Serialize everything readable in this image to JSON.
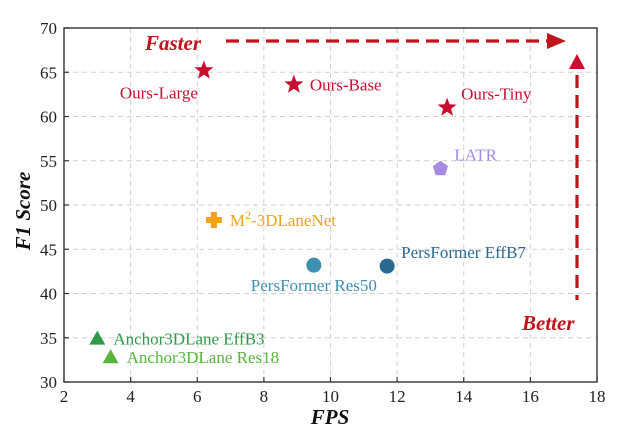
{
  "chart_data": {
    "type": "scatter",
    "xlabel": "FPS",
    "ylabel": "F1 Score",
    "xlim": [
      2,
      18
    ],
    "ylim": [
      30,
      70
    ],
    "xticks": [
      2,
      4,
      6,
      8,
      10,
      12,
      14,
      16,
      18
    ],
    "yticks": [
      30,
      35,
      40,
      45,
      50,
      55,
      60,
      65,
      70
    ],
    "grid": true,
    "points": [
      {
        "name": "Ours-Large",
        "x": 6.2,
        "y": 65.2,
        "marker": "star",
        "color": "#c8102e",
        "label_pos": "below-left"
      },
      {
        "name": "Ours-Base",
        "x": 8.9,
        "y": 63.6,
        "marker": "star",
        "color": "#c8102e",
        "label_pos": "right"
      },
      {
        "name": "Ours-Tiny",
        "x": 13.5,
        "y": 61.0,
        "marker": "star",
        "color": "#c8102e",
        "label_pos": "above-right"
      },
      {
        "name": "LATR",
        "x": 13.3,
        "y": 54.1,
        "marker": "pentagon",
        "color": "#a58be3",
        "label_pos": "above-right"
      },
      {
        "name_prefix": "M",
        "name_sup": "2",
        "name_suffix": "-3DLaneNet",
        "x": 6.5,
        "y": 48.3,
        "marker": "plus",
        "color": "#f2a31b",
        "label_pos": "right"
      },
      {
        "name": "PersFormer Res50",
        "x": 9.5,
        "y": 43.2,
        "marker": "circle",
        "color": "#3d8fb3",
        "label_pos": "below"
      },
      {
        "name": "PersFormer EffB7",
        "x": 11.7,
        "y": 43.1,
        "marker": "circle",
        "color": "#2a6a91",
        "label_pos": "above-right"
      },
      {
        "name": "Anchor3DLane EffB3",
        "x": 3.0,
        "y": 34.9,
        "marker": "triangle",
        "color": "#2e9a48",
        "label_pos": "right"
      },
      {
        "name": "Anchor3DLane Res18",
        "x": 3.4,
        "y": 32.8,
        "marker": "triangle",
        "color": "#58b43c",
        "label_pos": "right"
      }
    ],
    "annotations": {
      "faster": "Faster",
      "better": "Better",
      "corner_marker_color": "#c8102e",
      "arrow_color": "#c0141c"
    }
  }
}
